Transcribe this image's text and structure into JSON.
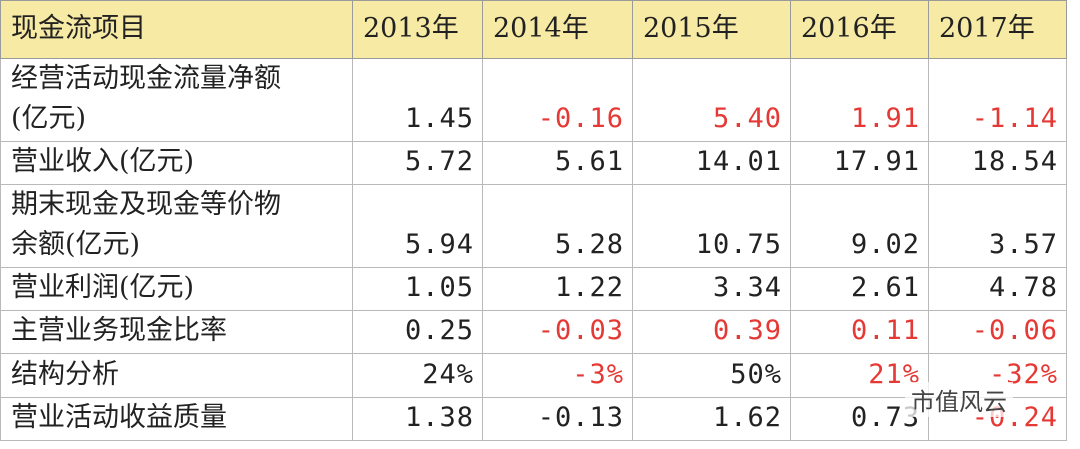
{
  "table": {
    "header": [
      "现金流项目",
      "2013年",
      "2014年",
      "2015年",
      "2016年",
      "2017年"
    ],
    "rows": [
      {
        "label_lines": [
          "经营活动现金流量净额",
          "(亿元)"
        ],
        "values": [
          "1.45",
          "-0.16",
          "5.40",
          "1.91",
          "-1.14"
        ],
        "colors": [
          "#222222",
          "#e53935",
          "#e53935",
          "#e53935",
          "#e53935"
        ]
      },
      {
        "label_lines": [
          "营业收入(亿元)"
        ],
        "values": [
          "5.72",
          "5.61",
          "14.01",
          "17.91",
          "18.54"
        ],
        "colors": [
          "#222222",
          "#222222",
          "#222222",
          "#222222",
          "#222222"
        ]
      },
      {
        "label_lines": [
          "期末现金及现金等价物",
          "余额(亿元)"
        ],
        "values": [
          "5.94",
          "5.28",
          "10.75",
          "9.02",
          "3.57"
        ],
        "colors": [
          "#222222",
          "#222222",
          "#222222",
          "#222222",
          "#222222"
        ]
      },
      {
        "label_lines": [
          "营业利润(亿元)"
        ],
        "values": [
          "1.05",
          "1.22",
          "3.34",
          "2.61",
          "4.78"
        ],
        "colors": [
          "#222222",
          "#222222",
          "#222222",
          "#222222",
          "#222222"
        ]
      },
      {
        "label_lines": [
          "主营业务现金比率"
        ],
        "values": [
          "0.25",
          "-0.03",
          "0.39",
          "0.11",
          "-0.06"
        ],
        "colors": [
          "#222222",
          "#e53935",
          "#e53935",
          "#e53935",
          "#e53935"
        ]
      },
      {
        "label_lines": [
          "结构分析"
        ],
        "values": [
          "24%",
          "-3%",
          "50%",
          "21%",
          "-32%"
        ],
        "colors": [
          "#222222",
          "#e53935",
          "#222222",
          "#e53935",
          "#e53935"
        ]
      },
      {
        "label_lines": [
          "营业活动收益质量"
        ],
        "values": [
          "1.38",
          "-0.13",
          "1.62",
          "0.73",
          "-0.24"
        ],
        "colors": [
          "#222222",
          "#222222",
          "#222222",
          "#222222",
          "#e53935"
        ]
      }
    ]
  },
  "watermark": "市值风云"
}
